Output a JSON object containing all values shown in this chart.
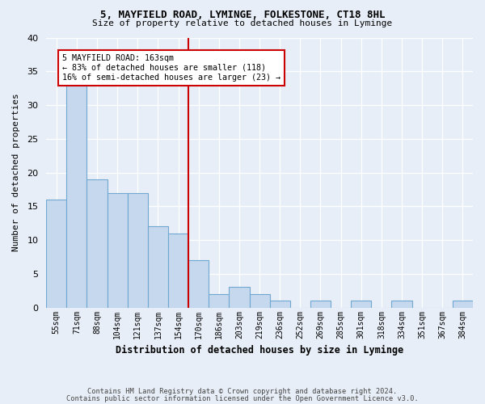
{
  "title1": "5, MAYFIELD ROAD, LYMINGE, FOLKESTONE, CT18 8HL",
  "title2": "Size of property relative to detached houses in Lyminge",
  "xlabel": "Distribution of detached houses by size in Lyminge",
  "ylabel": "Number of detached properties",
  "categories": [
    "55sqm",
    "71sqm",
    "88sqm",
    "104sqm",
    "121sqm",
    "137sqm",
    "154sqm",
    "170sqm",
    "186sqm",
    "203sqm",
    "219sqm",
    "236sqm",
    "252sqm",
    "269sqm",
    "285sqm",
    "301sqm",
    "318sqm",
    "334sqm",
    "351sqm",
    "367sqm",
    "384sqm"
  ],
  "values": [
    16,
    33,
    19,
    17,
    17,
    12,
    11,
    7,
    2,
    3,
    2,
    1,
    0,
    1,
    0,
    1,
    0,
    1,
    0,
    0,
    1
  ],
  "bar_color": "#c5d8ed",
  "bar_edge_color": "#6fa8d0",
  "annotation_text": "5 MAYFIELD ROAD: 163sqm\n← 83% of detached houses are smaller (118)\n16% of semi-detached houses are larger (23) →",
  "annotation_box_color": "#ffffff",
  "annotation_box_edge": "#cc0000",
  "redline_color": "#cc0000",
  "footer1": "Contains HM Land Registry data © Crown copyright and database right 2024.",
  "footer2": "Contains public sector information licensed under the Open Government Licence v3.0.",
  "ylim": [
    0,
    40
  ],
  "yticks": [
    0,
    5,
    10,
    15,
    20,
    25,
    30,
    35,
    40
  ],
  "background_color": "#e8eef7"
}
